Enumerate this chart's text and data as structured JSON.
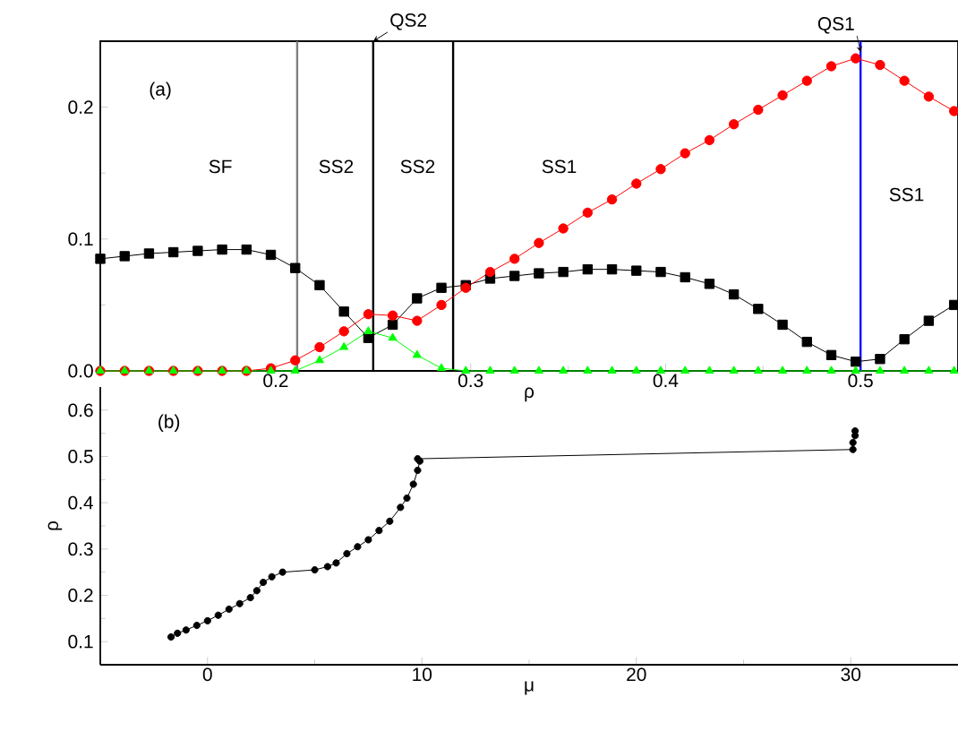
{
  "chart_data": [
    {
      "type": "line",
      "xlabel": "ρ",
      "xlim": [
        0.11,
        0.55
      ],
      "ylim": [
        0,
        0.25
      ],
      "xticks": [
        0.2,
        0.3,
        0.4,
        0.5
      ],
      "yticks": [
        {
          "value": 0,
          "label": "0.0"
        },
        {
          "value": 0.1,
          "label": "0.1"
        },
        {
          "value": 0.2,
          "label": "0.2"
        }
      ],
      "x": [
        0.11,
        0.1225,
        0.135,
        0.1475,
        0.16,
        0.1725,
        0.185,
        0.1975,
        0.21,
        0.2225,
        0.235,
        0.2475,
        0.26,
        0.2725,
        0.285,
        0.2975,
        0.31,
        0.3225,
        0.335,
        0.3475,
        0.36,
        0.3725,
        0.385,
        0.3975,
        0.41,
        0.4225,
        0.435,
        0.4475,
        0.46,
        0.4725,
        0.485,
        0.4975,
        0.51,
        0.5225,
        0.535,
        0.548
      ],
      "series": [
        {
          "color": "#000000",
          "marker": "square",
          "values": [
            0.085,
            0.087,
            0.089,
            0.09,
            0.091,
            0.092,
            0.092,
            0.088,
            0.078,
            0.065,
            0.045,
            0.025,
            0.035,
            0.055,
            0.063,
            0.065,
            0.07,
            0.072,
            0.074,
            0.075,
            0.077,
            0.077,
            0.076,
            0.075,
            0.071,
            0.066,
            0.058,
            0.047,
            0.035,
            0.022,
            0.012,
            0.007,
            0.009,
            0.024,
            0.038,
            0.05
          ]
        },
        {
          "color": "#ff0000",
          "marker": "circle",
          "values": [
            0,
            0,
            0,
            0,
            0,
            0,
            0,
            0.002,
            0.008,
            0.018,
            0.03,
            0.043,
            0.042,
            0.038,
            0.05,
            0.063,
            0.075,
            0.085,
            0.097,
            0.108,
            0.12,
            0.13,
            0.142,
            0.153,
            0.165,
            0.175,
            0.187,
            0.198,
            0.209,
            0.22,
            0.231,
            0.237,
            0.232,
            0.22,
            0.208,
            0.197
          ]
        },
        {
          "color": "#00ff00",
          "marker": "triangle",
          "values": [
            0,
            0,
            0,
            0,
            0,
            0,
            0,
            0,
            0,
            0.008,
            0.018,
            0.03,
            0.025,
            0.012,
            0.002,
            0,
            0,
            0,
            0,
            0,
            0,
            0,
            0,
            0,
            0,
            0,
            0,
            0,
            0,
            0,
            0,
            0,
            0,
            0,
            0,
            0
          ]
        }
      ],
      "ref_lines": [
        {
          "axis": "x",
          "value": 0.211,
          "color": "#808080"
        },
        {
          "axis": "x",
          "value": 0.25,
          "color": "#000000",
          "label": "QS2"
        },
        {
          "axis": "x",
          "value": 0.291,
          "color": "#000000"
        },
        {
          "axis": "x",
          "value": 0.5,
          "color": "#0000ff",
          "label": "QS1"
        }
      ],
      "annotations": [
        "(a)",
        "SF",
        "SS2",
        "SS2",
        "SS1",
        "SS1"
      ]
    },
    {
      "type": "line",
      "xlabel": "μ",
      "ylabel": "ρ",
      "xlim": [
        -5,
        35
      ],
      "ylim": [
        0.05,
        0.65
      ],
      "xticks": [
        0,
        10,
        20,
        30
      ],
      "yticks": [
        0.1,
        0.2,
        0.3,
        0.4,
        0.5,
        0.6
      ],
      "series": [
        {
          "color": "#000000",
          "marker": "circle",
          "x": [
            -1.7,
            -1.4,
            -1,
            -0.5,
            0,
            0.5,
            1,
            1.5,
            2,
            2.3,
            2.6,
            3,
            3.5,
            5,
            5.6,
            6,
            6.5,
            7,
            7.5,
            8,
            8.5,
            9,
            9.3,
            9.6,
            9.8,
            9.9,
            9.8,
            30.1,
            30.1,
            30.2,
            30.2
          ],
          "values": [
            0.11,
            0.118,
            0.125,
            0.135,
            0.145,
            0.157,
            0.17,
            0.182,
            0.195,
            0.21,
            0.228,
            0.24,
            0.25,
            0.255,
            0.262,
            0.27,
            0.29,
            0.305,
            0.32,
            0.34,
            0.36,
            0.39,
            0.41,
            0.44,
            0.47,
            0.49,
            0.495,
            0.515,
            0.53,
            0.545,
            0.555
          ]
        }
      ],
      "annotations": [
        "(b)"
      ]
    }
  ]
}
